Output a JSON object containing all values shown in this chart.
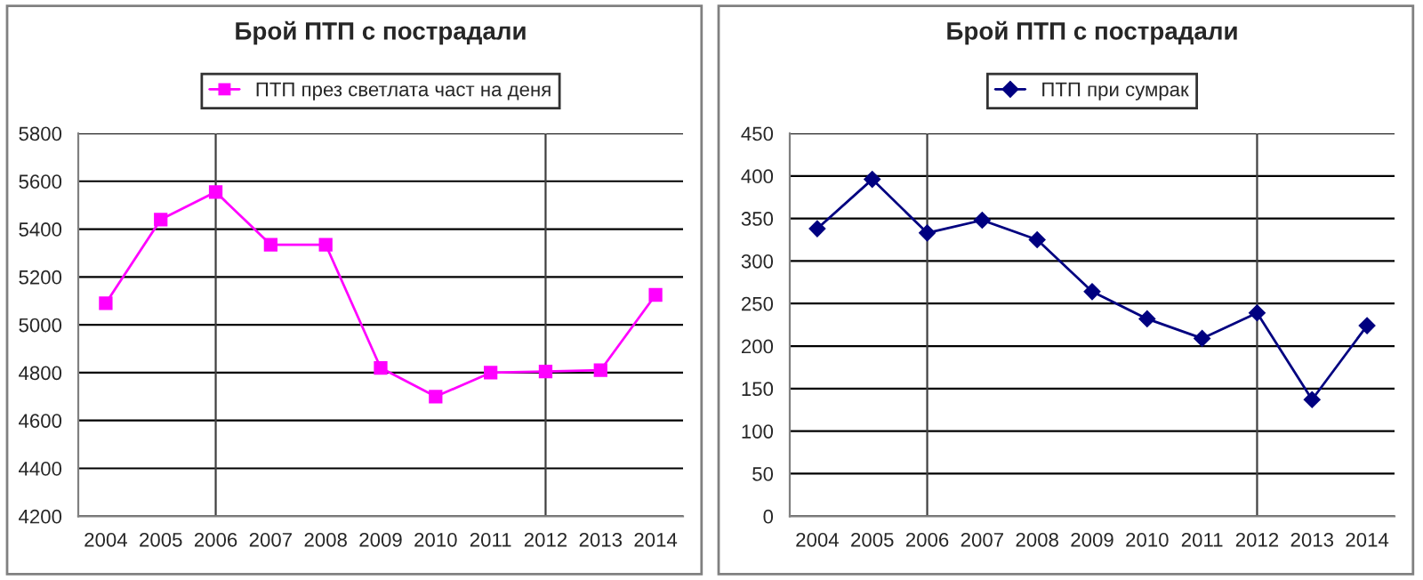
{
  "chart_data": [
    {
      "type": "line",
      "title": "Брой ПТП с пострадали",
      "categories": [
        "2004",
        "2005",
        "2006",
        "2007",
        "2008",
        "2009",
        "2010",
        "2011",
        "2012",
        "2013",
        "2014"
      ],
      "series": [
        {
          "name": "ПТП през светлата част на деня",
          "color": "#ff00ff",
          "values": [
            5090,
            5440,
            5555,
            5335,
            5335,
            4820,
            4700,
            4800,
            4805,
            4810,
            5125
          ]
        }
      ],
      "ylim": [
        4200,
        5800
      ],
      "yticks": [
        4200,
        4400,
        4600,
        4800,
        5000,
        5200,
        5400,
        5600,
        5800
      ],
      "grid": "y",
      "legend": "top",
      "marker": "square",
      "ref_lines": [
        {
          "axis": "x",
          "value": "2006"
        },
        {
          "axis": "x",
          "value": "2012"
        }
      ]
    },
    {
      "type": "line",
      "title": "Брой ПТП с пострадали",
      "categories": [
        "2004",
        "2005",
        "2006",
        "2007",
        "2008",
        "2009",
        "2010",
        "2011",
        "2012",
        "2013",
        "2014"
      ],
      "series": [
        {
          "name": "ПТП при сумрак",
          "color": "#000080",
          "values": [
            338,
            396,
            333,
            348,
            325,
            264,
            232,
            209,
            239,
            137,
            224
          ]
        }
      ],
      "ylim": [
        0,
        450
      ],
      "yticks": [
        0,
        50,
        100,
        150,
        200,
        250,
        300,
        350,
        400,
        450
      ],
      "grid": "y",
      "legend": "top",
      "marker": "diamond",
      "ref_lines": [
        {
          "axis": "x",
          "value": "2006"
        },
        {
          "axis": "x",
          "value": "2012"
        }
      ]
    }
  ]
}
